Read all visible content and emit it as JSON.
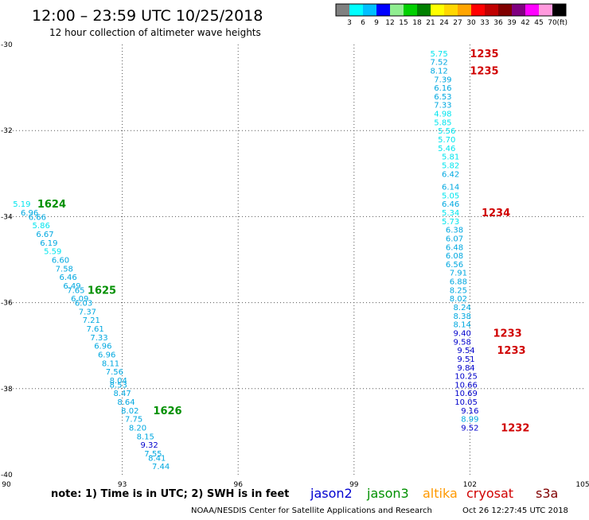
{
  "header": {
    "title": "12:00 – 23:59 UTC 10/25/2018",
    "subtitle": "12 hour collection of altimeter wave heights"
  },
  "colorbar": {
    "labels": [
      "3",
      "6",
      "9",
      "12",
      "15",
      "18",
      "21",
      "24",
      "27",
      "30",
      "33",
      "36",
      "39",
      "42",
      "45",
      "70"
    ],
    "unit": "(ft)",
    "colors": [
      "#808080",
      "#00ffff",
      "#00bfff",
      "#0000ff",
      "#90ee90",
      "#00d000",
      "#008000",
      "#ffff00",
      "#ffd700",
      "#ffa500",
      "#ff0000",
      "#c00000",
      "#800000",
      "#800080",
      "#ff00ff",
      "#ff99dd",
      "#000000"
    ]
  },
  "footer": {
    "note": "note: 1) Time is in UTC; 2) SWH is in feet",
    "credit": "NOAA/NESDIS Center for Satellite Applications and Research",
    "timestamp": "Oct 26 12:27:45 UTC 2018",
    "missions": [
      {
        "name": "jason2",
        "color": "#0000d0"
      },
      {
        "name": "jason3",
        "color": "#009000"
      },
      {
        "name": "altika",
        "color": "#ff9900"
      },
      {
        "name": "cryosat",
        "color": "#d00000"
      },
      {
        "name": "s3a",
        "color": "#800000"
      }
    ]
  },
  "chart_data": {
    "type": "scatter",
    "xlim": [
      90,
      105
    ],
    "ylim": [
      -40,
      -30
    ],
    "xticks": [
      "90",
      "93",
      "96",
      "99",
      "102",
      "105"
    ],
    "yticks": [
      "-30",
      "-32",
      "-34",
      "-36",
      "-38",
      "-40"
    ],
    "grid": true,
    "series": [
      {
        "mission": "jason3",
        "color": "#009000",
        "points": [
          {
            "lon": 90.4,
            "lat": -33.7,
            "swh": "5.19"
          },
          {
            "lon": 90.6,
            "lat": -33.9,
            "swh": "6.96"
          },
          {
            "lon": 90.8,
            "lat": -34.0,
            "swh": "6.66"
          },
          {
            "lon": 90.9,
            "lat": -34.2,
            "swh": "5.86"
          },
          {
            "lon": 91.0,
            "lat": -34.4,
            "swh": "6.67"
          },
          {
            "lon": 91.1,
            "lat": -34.6,
            "swh": "6.19"
          },
          {
            "lon": 91.2,
            "lat": -34.8,
            "swh": "5.59"
          },
          {
            "lon": 91.4,
            "lat": -35.0,
            "swh": "6.60"
          },
          {
            "lon": 91.5,
            "lat": -35.2,
            "swh": "7.58"
          },
          {
            "lon": 91.6,
            "lat": -35.4,
            "swh": "6.46"
          },
          {
            "lon": 91.7,
            "lat": -35.6,
            "swh": "6.49"
          },
          {
            "lon": 91.8,
            "lat": -35.7,
            "swh": "7.65"
          },
          {
            "lon": 91.9,
            "lat": -35.9,
            "swh": "6.09"
          },
          {
            "lon": 92.0,
            "lat": -36.0,
            "swh": "6.03"
          },
          {
            "lon": 92.1,
            "lat": -36.2,
            "swh": "7.37"
          },
          {
            "lon": 92.2,
            "lat": -36.4,
            "swh": "7.21"
          },
          {
            "lon": 92.3,
            "lat": -36.6,
            "swh": "7.61"
          },
          {
            "lon": 92.4,
            "lat": -36.8,
            "swh": "7.33"
          },
          {
            "lon": 92.5,
            "lat": -37.0,
            "swh": "6.96"
          },
          {
            "lon": 92.6,
            "lat": -37.2,
            "swh": "6.96"
          },
          {
            "lon": 92.7,
            "lat": -37.4,
            "swh": "8.11"
          },
          {
            "lon": 92.8,
            "lat": -37.6,
            "swh": "7.56"
          },
          {
            "lon": 92.9,
            "lat": -37.8,
            "swh": "8.04"
          },
          {
            "lon": 92.9,
            "lat": -37.9,
            "swh": "8.53"
          },
          {
            "lon": 93.0,
            "lat": -38.1,
            "swh": "8.47"
          },
          {
            "lon": 93.1,
            "lat": -38.3,
            "swh": "8.64"
          },
          {
            "lon": 93.2,
            "lat": -38.5,
            "swh": "8.02"
          },
          {
            "lon": 93.3,
            "lat": -38.7,
            "swh": "7.75"
          },
          {
            "lon": 93.4,
            "lat": -38.9,
            "swh": "8.20"
          },
          {
            "lon": 93.6,
            "lat": -39.1,
            "swh": "8.15"
          },
          {
            "lon": 93.7,
            "lat": -39.3,
            "swh": "9.32"
          },
          {
            "lon": 93.8,
            "lat": -39.5,
            "swh": "7.55"
          },
          {
            "lon": 93.9,
            "lat": -39.6,
            "swh": "8.41"
          },
          {
            "lon": 94.0,
            "lat": -39.8,
            "swh": "7.44"
          }
        ],
        "time_labels": [
          {
            "lon": 90.8,
            "lat": -33.7,
            "text": "1624"
          },
          {
            "lon": 92.1,
            "lat": -35.7,
            "text": "1625"
          },
          {
            "lon": 93.8,
            "lat": -38.5,
            "text": "1626"
          }
        ]
      },
      {
        "mission": "cryosat",
        "color": "#d00000",
        "points": [
          {
            "lon": 101.2,
            "lat": -30.2,
            "swh": "5.75"
          },
          {
            "lon": 101.2,
            "lat": -30.4,
            "swh": "7.52"
          },
          {
            "lon": 101.2,
            "lat": -30.6,
            "swh": "8.12"
          },
          {
            "lon": 101.3,
            "lat": -30.8,
            "swh": "7.39"
          },
          {
            "lon": 101.3,
            "lat": -31.0,
            "swh": "6.16"
          },
          {
            "lon": 101.3,
            "lat": -31.2,
            "swh": "6.53"
          },
          {
            "lon": 101.3,
            "lat": -31.4,
            "swh": "7.33"
          },
          {
            "lon": 101.3,
            "lat": -31.6,
            "swh": "4.98"
          },
          {
            "lon": 101.3,
            "lat": -31.8,
            "swh": "5.85"
          },
          {
            "lon": 101.4,
            "lat": -32.0,
            "swh": "5.56"
          },
          {
            "lon": 101.4,
            "lat": -32.2,
            "swh": "5.70"
          },
          {
            "lon": 101.4,
            "lat": -32.4,
            "swh": "5.46"
          },
          {
            "lon": 101.5,
            "lat": -32.6,
            "swh": "5.81"
          },
          {
            "lon": 101.5,
            "lat": -32.8,
            "swh": "5.82"
          },
          {
            "lon": 101.5,
            "lat": -33.0,
            "swh": "6.42"
          },
          {
            "lon": 101.5,
            "lat": -33.3,
            "swh": "6.14"
          },
          {
            "lon": 101.5,
            "lat": -33.5,
            "swh": "5.05"
          },
          {
            "lon": 101.5,
            "lat": -33.7,
            "swh": "6.46"
          },
          {
            "lon": 101.5,
            "lat": -33.9,
            "swh": "5.34"
          },
          {
            "lon": 101.5,
            "lat": -34.1,
            "swh": "5.73"
          },
          {
            "lon": 101.6,
            "lat": -34.3,
            "swh": "6.38"
          },
          {
            "lon": 101.6,
            "lat": -34.5,
            "swh": "6.07"
          },
          {
            "lon": 101.6,
            "lat": -34.7,
            "swh": "6.48"
          },
          {
            "lon": 101.6,
            "lat": -34.9,
            "swh": "6.08"
          },
          {
            "lon": 101.6,
            "lat": -35.1,
            "swh": "6.56"
          },
          {
            "lon": 101.7,
            "lat": -35.3,
            "swh": "7.91"
          },
          {
            "lon": 101.7,
            "lat": -35.5,
            "swh": "6.88"
          },
          {
            "lon": 101.7,
            "lat": -35.7,
            "swh": "8.25"
          },
          {
            "lon": 101.7,
            "lat": -35.9,
            "swh": "8.02"
          },
          {
            "lon": 101.8,
            "lat": -36.1,
            "swh": "8.24"
          },
          {
            "lon": 101.8,
            "lat": -36.3,
            "swh": "8.38"
          },
          {
            "lon": 101.8,
            "lat": -36.5,
            "swh": "8.14"
          },
          {
            "lon": 101.8,
            "lat": -36.7,
            "swh": "9.40"
          },
          {
            "lon": 101.8,
            "lat": -36.9,
            "swh": "9.58"
          },
          {
            "lon": 101.9,
            "lat": -37.1,
            "swh": "9.54"
          },
          {
            "lon": 101.9,
            "lat": -37.3,
            "swh": "9.51"
          },
          {
            "lon": 101.9,
            "lat": -37.5,
            "swh": "9.84"
          },
          {
            "lon": 101.9,
            "lat": -37.7,
            "swh": "10.25"
          },
          {
            "lon": 101.9,
            "lat": -37.9,
            "swh": "10.66"
          },
          {
            "lon": 101.9,
            "lat": -38.1,
            "swh": "10.69"
          },
          {
            "lon": 101.9,
            "lat": -38.3,
            "swh": "10.05"
          },
          {
            "lon": 102.0,
            "lat": -38.5,
            "swh": "9.16"
          },
          {
            "lon": 102.0,
            "lat": -38.7,
            "swh": "8.99"
          },
          {
            "lon": 102.0,
            "lat": -38.9,
            "swh": "9.52"
          }
        ],
        "time_labels": [
          {
            "lon": 102.0,
            "lat": -30.2,
            "text": "1235"
          },
          {
            "lon": 102.0,
            "lat": -30.6,
            "text": "1235"
          },
          {
            "lon": 102.3,
            "lat": -33.9,
            "text": "1234"
          },
          {
            "lon": 102.6,
            "lat": -36.7,
            "text": "1233"
          },
          {
            "lon": 102.7,
            "lat": -37.1,
            "text": "1233"
          },
          {
            "lon": 102.8,
            "lat": -38.9,
            "text": "1232"
          }
        ]
      }
    ]
  }
}
